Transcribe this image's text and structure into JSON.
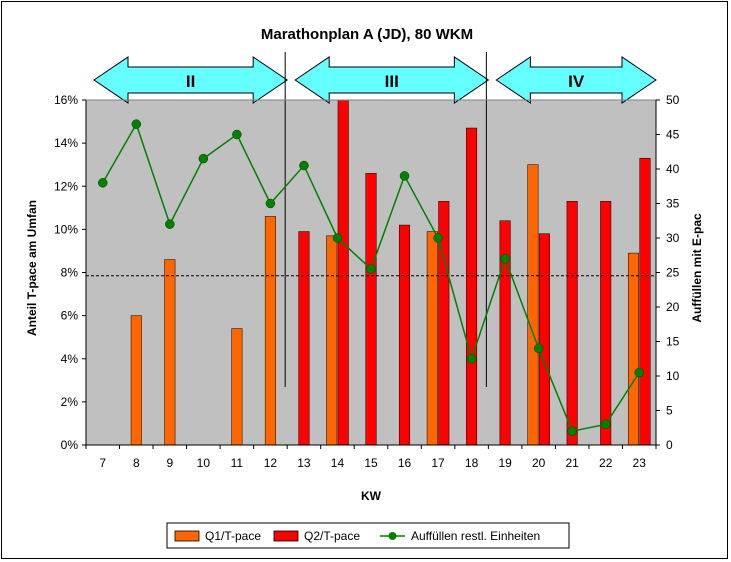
{
  "chart_data": {
    "type": "bar",
    "title": "Marathonplan A (JD), 80 WKM",
    "xlabel": "KW",
    "ylabel": "Anteil T-pace am Umfan",
    "y2label": "Auffüllen mit E-pac",
    "categories": [
      "7",
      "8",
      "9",
      "10",
      "11",
      "12",
      "13",
      "14",
      "15",
      "16",
      "17",
      "18",
      "19",
      "20",
      "21",
      "22",
      "23"
    ],
    "ylim": [
      0,
      16
    ],
    "y_ticks": [
      "0%",
      "2%",
      "4%",
      "6%",
      "8%",
      "10%",
      "12%",
      "14%",
      "16%"
    ],
    "y2lim": [
      0,
      50
    ],
    "y2_ticks": [
      "0",
      "5",
      "10",
      "15",
      "20",
      "25",
      "30",
      "35",
      "40",
      "45",
      "50"
    ],
    "series": [
      {
        "name": "Q1/T-pace",
        "type": "bar",
        "color": "#FF6600",
        "values": [
          null,
          6.0,
          8.6,
          null,
          5.4,
          10.6,
          null,
          9.7,
          null,
          null,
          9.9,
          null,
          null,
          13.0,
          null,
          null,
          8.9
        ]
      },
      {
        "name": "Q2/T-pace",
        "type": "bar",
        "color": "#FF0000",
        "values": [
          null,
          null,
          null,
          null,
          null,
          null,
          9.9,
          16.0,
          12.6,
          10.2,
          11.3,
          14.7,
          10.4,
          9.8,
          11.3,
          11.3,
          13.3
        ]
      },
      {
        "name": "Auffüllen restl. Einheiten",
        "type": "line",
        "axis": "y2",
        "color": "#008000",
        "values": [
          38,
          46.5,
          32,
          41.5,
          45,
          35,
          40.5,
          30,
          25.5,
          39,
          30,
          12.5,
          27,
          14,
          2,
          3,
          10.5
        ]
      }
    ],
    "reference_line": {
      "value": 7.85,
      "style": "dashed"
    },
    "phases": [
      {
        "label": "II",
        "from": "7",
        "to": "12"
      },
      {
        "label": "III",
        "from": "13",
        "to": "18"
      },
      {
        "label": "IV",
        "from": "19",
        "to": "23"
      }
    ],
    "legend_position": "bottom"
  },
  "colors": {
    "plot_bg": "#C0C0C0",
    "arrow_fill": "#66FFFF",
    "grid": "#000000"
  }
}
